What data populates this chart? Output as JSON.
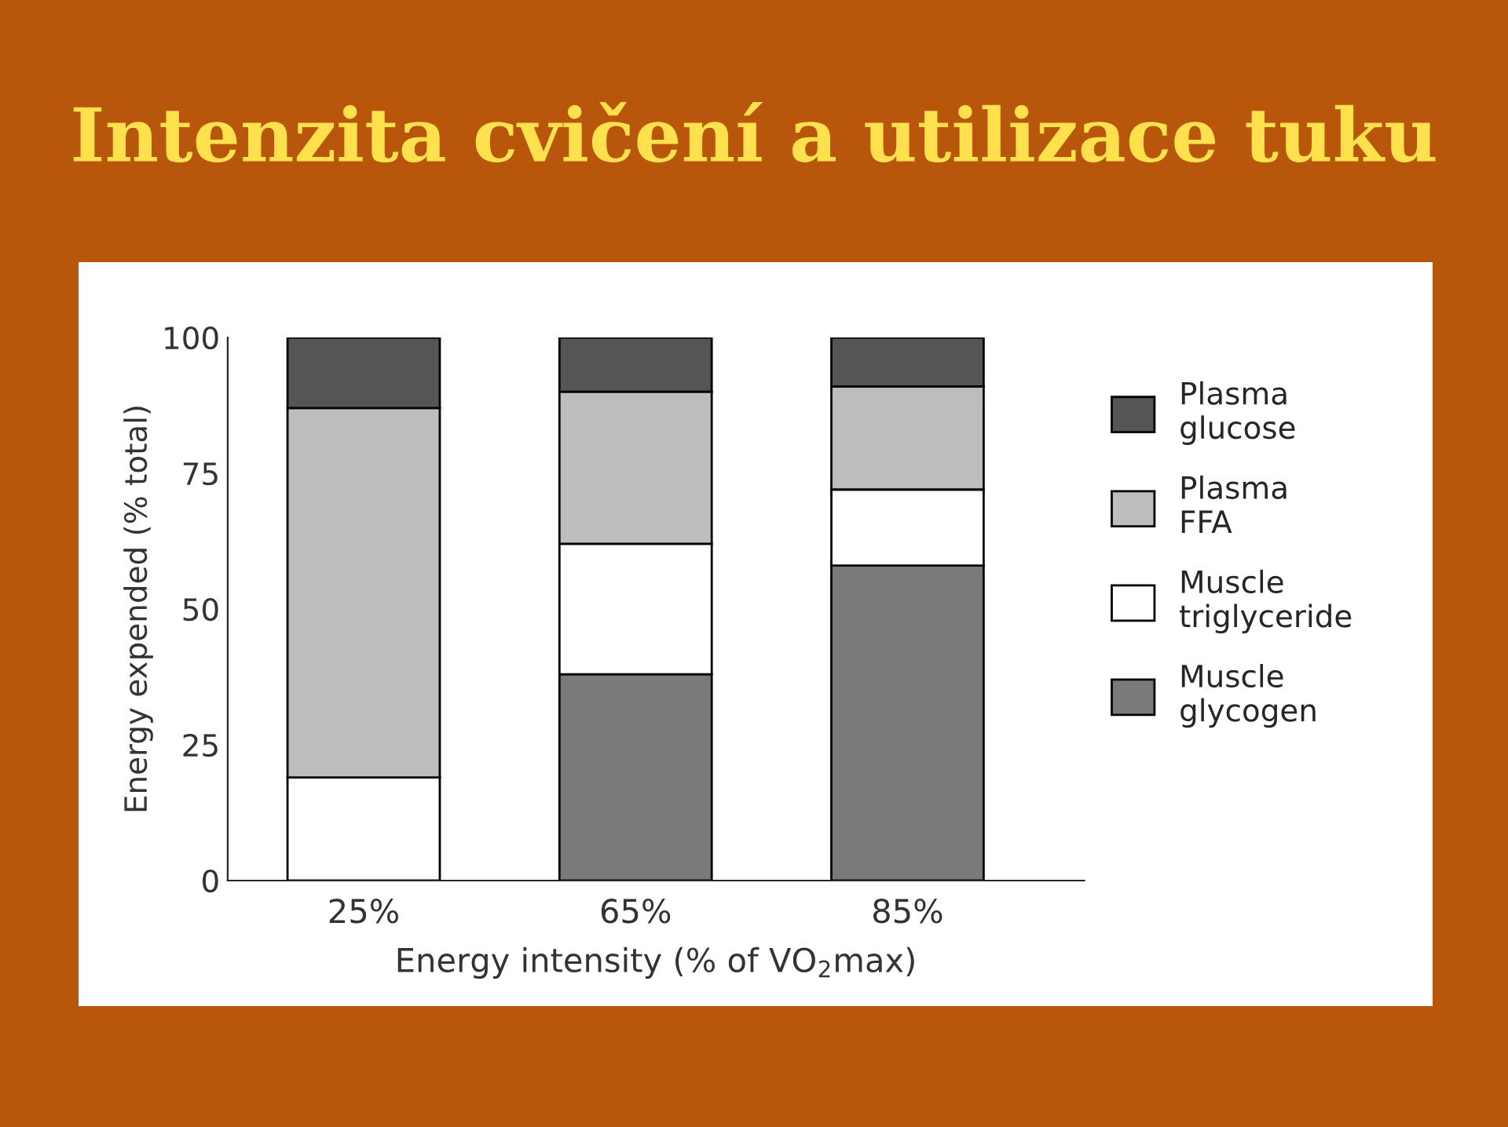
{
  "chart_data": {
    "type": "bar",
    "title": "Intenzita cvičení a utilizace tuku",
    "xlabel": "Energy intensity (% of VO$_{2}$max)",
    "ylabel": "Energy expended (% total)",
    "categories": [
      "25%",
      "65%",
      "85%"
    ],
    "stacked": true,
    "series": [
      {
        "name": "Muscle glycogen",
        "color": "#7a7a7a",
        "values": [
          0,
          38,
          58
        ]
      },
      {
        "name": "Muscle triglyceride",
        "color": "#ffffff",
        "values": [
          19,
          24,
          14
        ]
      },
      {
        "name": "Plasma FFA",
        "color": "#bdbdbd",
        "values": [
          68,
          28,
          19
        ]
      },
      {
        "name": "Plasma glucose",
        "color": "#555555",
        "values": [
          13,
          10,
          9
        ]
      }
    ],
    "ylim": [
      0,
      100
    ],
    "yticks": [
      0,
      25,
      50,
      75,
      100
    ],
    "grid": false,
    "legend": "right"
  }
}
